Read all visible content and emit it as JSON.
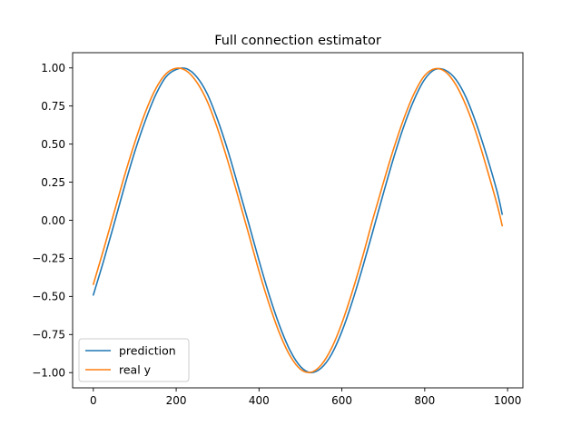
{
  "chart_data": {
    "type": "line",
    "title": "Full connection estimator",
    "xlabel": "",
    "ylabel": "",
    "xlim": [
      -50,
      1037
    ],
    "ylim": [
      -1.1,
      1.1
    ],
    "x_ticks": [
      0,
      200,
      400,
      600,
      800,
      1000
    ],
    "x_tick_labels": [
      "0",
      "200",
      "400",
      "600",
      "800",
      "1000"
    ],
    "y_ticks": [
      1.0,
      0.75,
      0.5,
      0.25,
      0.0,
      -0.25,
      -0.5,
      -0.75,
      -1.0
    ],
    "y_tick_labels": [
      "1.00",
      "0.75",
      "0.50",
      "0.25",
      "0.00",
      "−0.25",
      "−0.50",
      "−0.75",
      "−1.00"
    ],
    "legend_position": "lower-left",
    "grid": false,
    "series": [
      {
        "name": "prediction",
        "color": "#1f77b4",
        "x": [
          0,
          25,
          50,
          75,
          100,
          125,
          150,
          175,
          200,
          225,
          250,
          275,
          300,
          325,
          350,
          375,
          400,
          425,
          450,
          475,
          500,
          525,
          550,
          575,
          600,
          625,
          650,
          675,
          700,
          725,
          750,
          775,
          800,
          825,
          850,
          875,
          900,
          925,
          950,
          975,
          987
        ],
        "y": [
          -0.49,
          -0.265,
          -0.025,
          0.22,
          0.45,
          0.65,
          0.82,
          0.94,
          0.99,
          0.995,
          0.94,
          0.83,
          0.66,
          0.455,
          0.22,
          -0.02,
          -0.265,
          -0.495,
          -0.695,
          -0.855,
          -0.96,
          -1.0,
          -0.97,
          -0.88,
          -0.73,
          -0.535,
          -0.31,
          -0.07,
          0.175,
          0.41,
          0.62,
          0.795,
          0.925,
          0.99,
          0.985,
          0.925,
          0.805,
          0.63,
          0.42,
          0.185,
          0.04
        ]
      },
      {
        "name": "real y",
        "color": "#ff7f0e",
        "x": [
          0,
          25,
          50,
          75,
          100,
          125,
          150,
          175,
          200,
          225,
          250,
          275,
          300,
          325,
          350,
          375,
          400,
          425,
          450,
          475,
          500,
          525,
          550,
          575,
          600,
          625,
          650,
          675,
          700,
          725,
          750,
          775,
          800,
          825,
          850,
          875,
          900,
          925,
          950,
          975,
          987
        ],
        "y": [
          -0.42,
          -0.19,
          0.05,
          0.29,
          0.51,
          0.705,
          0.86,
          0.96,
          0.998,
          0.98,
          0.905,
          0.78,
          0.6,
          0.385,
          0.15,
          -0.09,
          -0.335,
          -0.555,
          -0.745,
          -0.89,
          -0.978,
          -0.998,
          -0.95,
          -0.84,
          -0.675,
          -0.47,
          -0.24,
          0.01,
          0.245,
          0.47,
          0.67,
          0.835,
          0.95,
          0.995,
          0.975,
          0.89,
          0.75,
          0.565,
          0.34,
          0.1,
          -0.035
        ]
      }
    ]
  }
}
